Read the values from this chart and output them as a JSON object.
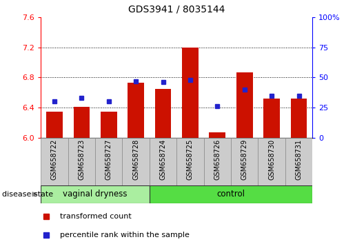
{
  "title": "GDS3941 / 8035144",
  "samples": [
    "GSM658722",
    "GSM658723",
    "GSM658727",
    "GSM658728",
    "GSM658724",
    "GSM658725",
    "GSM658726",
    "GSM658729",
    "GSM658730",
    "GSM658731"
  ],
  "red_values": [
    6.35,
    6.41,
    6.35,
    6.73,
    6.65,
    7.2,
    6.07,
    6.87,
    6.52,
    6.52
  ],
  "blue_values": [
    30,
    33,
    30,
    47,
    46,
    48,
    26,
    40,
    35,
    35
  ],
  "ylim_left": [
    6.0,
    7.6
  ],
  "ylim_right": [
    0,
    100
  ],
  "yticks_left": [
    6.0,
    6.4,
    6.8,
    7.2,
    7.6
  ],
  "yticks_right": [
    0,
    25,
    50,
    75,
    100
  ],
  "ytick_labels_right": [
    "0",
    "25",
    "50",
    "75",
    "100%"
  ],
  "group1_label": "vaginal dryness",
  "group2_label": "control",
  "group1_count": 4,
  "group2_count": 6,
  "legend_red": "transformed count",
  "legend_blue": "percentile rank within the sample",
  "disease_state_label": "disease state",
  "bar_color": "#cc1100",
  "dot_color": "#2222cc",
  "group1_bg": "#aaeea0",
  "group2_bg": "#55dd44",
  "label_bg": "#cccccc",
  "bar_width": 0.6,
  "baseline": 6.0
}
